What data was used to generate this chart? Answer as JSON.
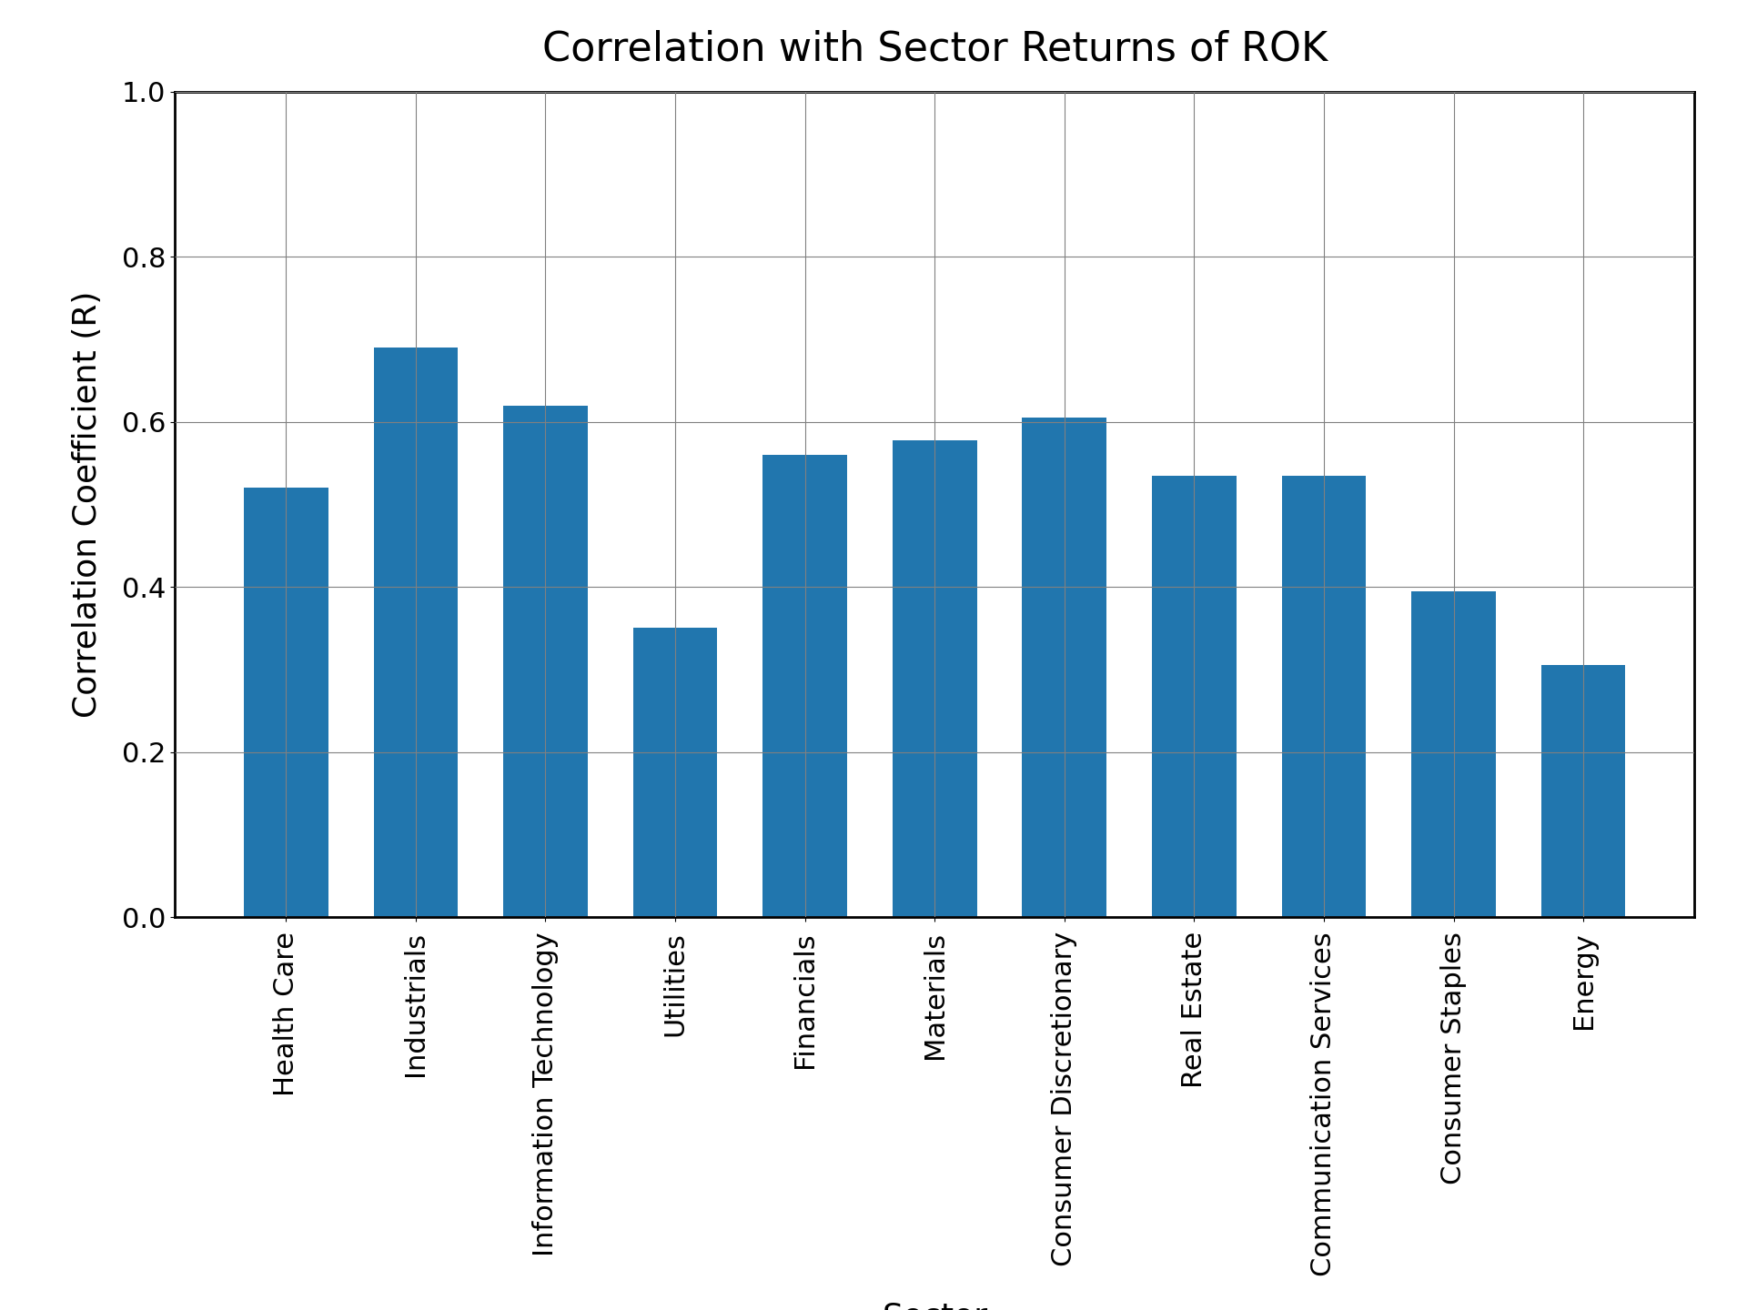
{
  "title": "Correlation with Sector Returns of ROK",
  "xlabel": "Sector",
  "ylabel": "Correlation Coefficient (R)",
  "categories": [
    "Health Care",
    "Industrials",
    "Information Technology",
    "Utilities",
    "Financials",
    "Materials",
    "Consumer Discretionary",
    "Real Estate",
    "Communication Services",
    "Consumer Staples",
    "Energy"
  ],
  "values": [
    0.52,
    0.69,
    0.62,
    0.35,
    0.56,
    0.578,
    0.605,
    0.535,
    0.535,
    0.395,
    0.305
  ],
  "bar_color": "#2176ae",
  "ylim": [
    0.0,
    1.0
  ],
  "yticks": [
    0.0,
    0.2,
    0.4,
    0.6,
    0.8,
    1.0
  ],
  "title_fontsize": 32,
  "label_fontsize": 26,
  "tick_fontsize": 22,
  "background_color": "#ffffff",
  "grid": true,
  "bar_width": 0.65
}
